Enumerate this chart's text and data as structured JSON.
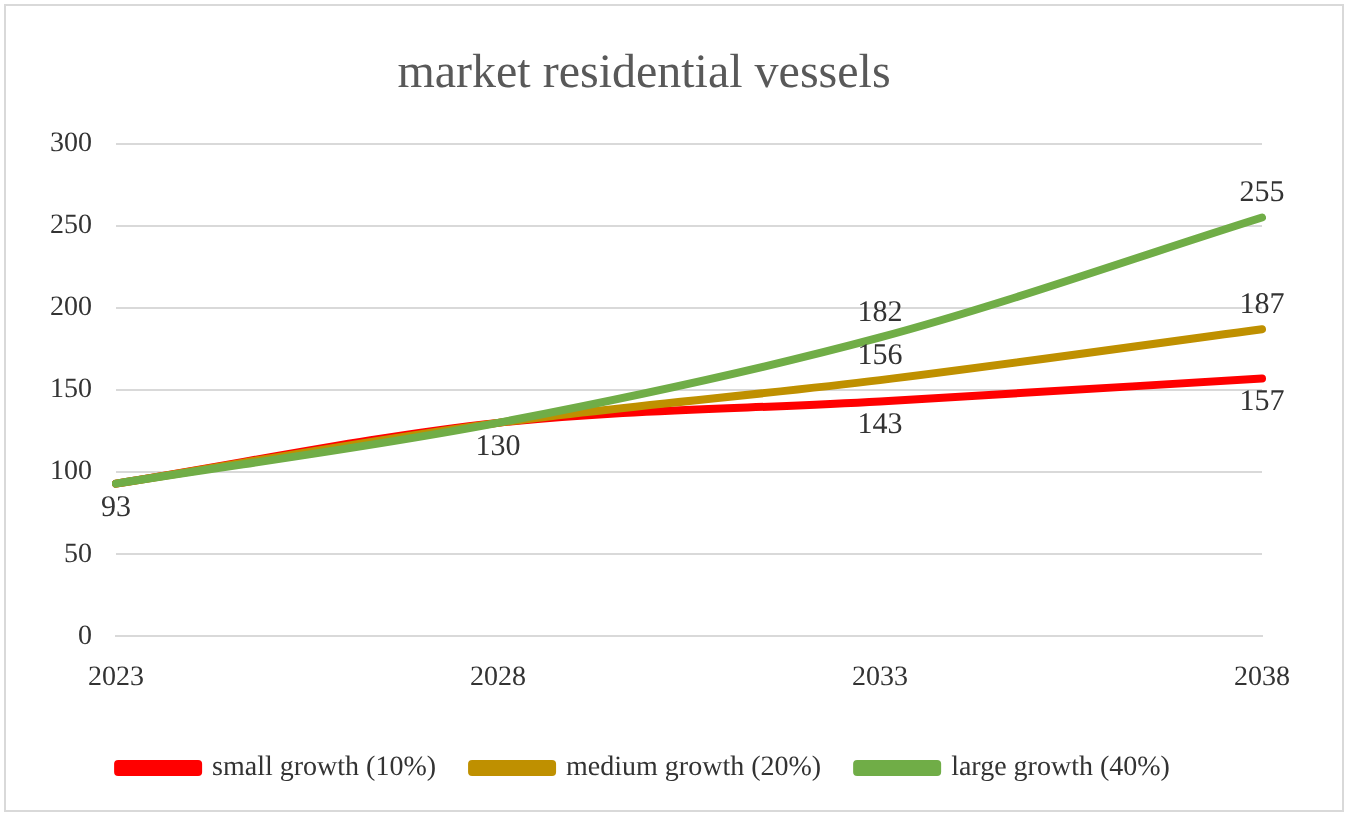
{
  "chart_data": {
    "type": "line",
    "title": "market residential vessels",
    "categories": [
      "2023",
      "2028",
      "2033",
      "2038"
    ],
    "series": [
      {
        "name": "small growth (10%)",
        "color": "#ff0000",
        "values": [
          93,
          130,
          143,
          157
        ],
        "value_labels": [
          null,
          null,
          "143",
          "157"
        ]
      },
      {
        "name": "medium growth (20%)",
        "color": "#bf9000",
        "values": [
          93,
          130,
          156,
          187
        ],
        "value_labels": [
          null,
          null,
          "156",
          "187"
        ]
      },
      {
        "name": "large growth (40%)",
        "color": "#70ad47",
        "values": [
          93,
          130,
          182,
          255
        ],
        "value_labels": [
          "93",
          "130",
          "182",
          "255"
        ]
      }
    ],
    "ylim": [
      0,
      300
    ],
    "yticks": [
      0,
      50,
      100,
      150,
      200,
      250,
      300
    ],
    "grid": "y",
    "legend": "bottom",
    "marker": "none",
    "line_style": "solid"
  }
}
